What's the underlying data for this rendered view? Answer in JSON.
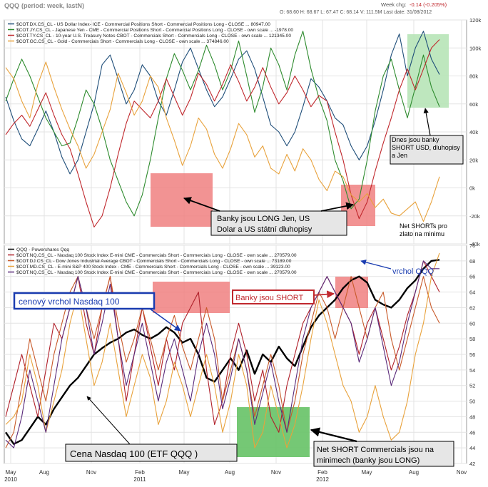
{
  "header": {
    "title": "QQQ",
    "period": "(period: week, lastN)",
    "ohlc": "O: 68.60   H: 68.67   L: 67.47   C: 68.14   V: 111.5M   Last date: 31/08/2012",
    "week_chg_label": "Week chg:",
    "week_chg_value": "-0.14 (-0.205%)"
  },
  "colors": {
    "usd": "#1f4e79",
    "jpy": "#2e8b2e",
    "tnote": "#c0282d",
    "gold": "#e8a23c",
    "qqq": "#000000",
    "nq": "#b0202a",
    "dj": "#c85a2a",
    "md": "#e8a23c",
    "nq2": "#5a2a7a",
    "red_box": "#f08080",
    "green_box": "#66c266",
    "light_green_box": "#b7e4b7"
  },
  "chart_data": [
    {
      "type": "line",
      "panel": "top",
      "ylim": [
        -40000,
        120000
      ],
      "yticks": [
        "120k",
        "100k",
        "80k",
        "60k",
        "40k",
        "20k",
        "0k",
        "-20k",
        "-40k"
      ],
      "legend": [
        "$COT.DX.CS_CL - US Dollar Index- ICE - Commercial Positions Short - Commercial Positions Long - CLOSE ... 80947.00",
        "$COT.JY.CS_CL - Japanese Yen - CME  - Commercial Positions Short - Commercial Positions Long - CLOSE - own scale ... -1978.00",
        "$COT.TY.CS_CL - 10-year U.S. Treasury Notes CBOT - Commercials Short - Commercials Long - CLOSE - own scale ... 121345.00",
        "$COT.GC.CS_CL - Gold - Commercials Short - Commercials Long - CLOSE - own scale ... 374846.00"
      ],
      "series": [
        {
          "name": "$COT.DX.CS_CL",
          "color": "#1f4e79",
          "values": [
            65000,
            48000,
            35000,
            30000,
            42000,
            55000,
            40000,
            22000,
            10000,
            20000,
            40000,
            60000,
            88000,
            95000,
            78000,
            60000,
            70000,
            88000,
            80000,
            62000,
            52000,
            70000,
            90000,
            100000,
            85000,
            70000,
            58000,
            65000,
            78000,
            92000,
            98000,
            85000,
            65000,
            45000,
            40000,
            30000,
            40000,
            58000,
            78000,
            72000,
            62000,
            50000,
            45000,
            30000,
            20000,
            30000,
            48000,
            70000,
            95000,
            110000,
            80000,
            100000,
            112000,
            92000,
            81000
          ]
        },
        {
          "name": "$COT.JY.CS_CL",
          "color": "#2e8b2e",
          "values": [
            62000,
            78000,
            92000,
            80000,
            65000,
            50000,
            40000,
            30000,
            32000,
            50000,
            70000,
            60000,
            42000,
            20000,
            5000,
            -10000,
            -20000,
            -5000,
            20000,
            50000,
            78000,
            96000,
            84000,
            70000,
            84000,
            102000,
            88000,
            70000,
            84000,
            105000,
            80000,
            54000,
            72000,
            100000,
            88000,
            70000,
            95000,
            112000,
            85000,
            64000,
            48000,
            20000,
            5000,
            -15000,
            -8000,
            20000,
            55000,
            80000,
            92000,
            70000,
            50000,
            72000,
            95000,
            72000,
            58000
          ]
        },
        {
          "name": "$COT.TY.CS_CL",
          "color": "#c0282d",
          "values": [
            38000,
            46000,
            52000,
            44000,
            56000,
            68000,
            52000,
            38000,
            28000,
            10000,
            -10000,
            -28000,
            -20000,
            0,
            24000,
            46000,
            62000,
            56000,
            50000,
            62000,
            78000,
            65000,
            52000,
            64000,
            82000,
            74000,
            62000,
            74000,
            88000,
            76000,
            62000,
            72000,
            86000,
            72000,
            60000,
            68000,
            80000,
            70000,
            58000,
            66000,
            62000,
            40000,
            20000,
            -5000,
            -22000,
            -10000,
            12000,
            32000,
            50000,
            70000,
            85000,
            70000,
            85000,
            100000,
            106000
          ]
        },
        {
          "name": "$COT.GC.CS_CL",
          "color": "#e8a23c",
          "values": [
            86000,
            78000,
            62000,
            50000,
            74000,
            90000,
            72000,
            56000,
            42000,
            30000,
            14000,
            24000,
            40000,
            56000,
            82000,
            68000,
            52000,
            62000,
            80000,
            72000,
            50000,
            34000,
            16000,
            30000,
            50000,
            42000,
            24000,
            14000,
            28000,
            46000,
            38000,
            22000,
            30000,
            14000,
            10000,
            24000,
            12000,
            28000,
            20000,
            6000,
            -2000,
            12000,
            8000,
            -5000,
            -10000,
            -4000,
            -14000,
            -8000,
            -18000,
            -20000,
            -15000,
            -10000,
            -24000,
            -10000,
            8000
          ]
        }
      ],
      "x_ticks": [
        "May\n2010",
        "Aug",
        "Nov",
        "Feb\n2011",
        "May",
        "Aug",
        "Nov",
        "Feb\n2012",
        "May",
        "Aug",
        "Nov"
      ]
    },
    {
      "type": "line",
      "panel": "bottom",
      "ylim": [
        42,
        70
      ],
      "yticks": [
        "70",
        "68",
        "66",
        "64",
        "62",
        "60",
        "58",
        "56",
        "54",
        "52",
        "50",
        "48",
        "46",
        "44",
        "42"
      ],
      "legend": [
        "QQQ - Powershares Qqq",
        "$COT.NQ.CS_CL - Nasdaq 100 Stock Index E-mini CME - Commercials Short - Commercials Long - CLOSE - own scale ... 270579.00",
        "$COT.DJ.CS_CL - Dow Jones Industrial Average CBOT - Commercials Short - Commercials Long - CLOSE - own scale ... 73189.00",
        "$COT.MD.CS_CL - E-mini S&P 400 Stock Index - CME - Commercials Short - Commercials Long - CLOSE - own scale ... 39123.00",
        "$COT.NQ.CS_CL - Nasdaq 100 Stock Index E-mini CME - Commercials Short - Commercials Long - CLOSE - own scale ... 270579.00"
      ],
      "series": [
        {
          "name": "QQQ - Powershares Qqq",
          "color": "#000000",
          "values": [
            46,
            44.5,
            45,
            46.5,
            48,
            47,
            49,
            50.5,
            52,
            53,
            54.5,
            56,
            56.8,
            57.5,
            58,
            58.8,
            59.2,
            58.5,
            58,
            58.6,
            59.5,
            58.8,
            57.5,
            58,
            56,
            53,
            52.5,
            54,
            55.5,
            54,
            56.5,
            53.5,
            56,
            55,
            57,
            55.5,
            54.5,
            57,
            59.5,
            61,
            62,
            63,
            64.5,
            65.5,
            66,
            65.2,
            63,
            62.4,
            62,
            63,
            64.5,
            65.5,
            67,
            68,
            68.14
          ]
        },
        {
          "name": "$COT.NQ.CS_CL",
          "color": "#b0202a",
          "values": [
            48,
            52,
            56,
            52,
            48,
            54,
            60,
            58,
            62,
            66,
            60,
            56,
            62,
            66,
            58,
            50,
            56,
            62,
            57,
            52,
            58,
            54,
            60,
            62,
            64,
            54,
            47,
            50,
            56,
            60,
            56,
            50,
            54,
            48,
            46,
            52,
            56,
            60,
            62,
            64,
            66,
            64,
            62,
            60,
            56,
            60,
            62,
            58,
            54,
            57,
            61,
            64,
            68,
            66,
            64
          ]
        },
        {
          "name": "$COT.DJ.CS_CL",
          "color": "#c85a2a",
          "values": [
            44,
            46,
            52,
            58,
            54,
            50,
            56,
            60,
            64,
            66,
            62,
            58,
            62,
            66,
            60,
            55,
            58,
            62,
            58,
            54,
            58,
            61,
            57,
            54,
            58,
            62,
            58,
            50,
            54,
            58,
            54,
            48,
            52,
            56,
            52,
            46,
            50,
            56,
            60,
            64,
            62,
            58,
            62,
            66,
            62,
            58,
            62,
            64,
            58,
            54,
            58,
            62,
            66,
            62,
            60
          ]
        },
        {
          "name": "$COT.MD.CS_CL",
          "color": "#e8a23c",
          "values": [
            47,
            48,
            50,
            56,
            52,
            46,
            50,
            54,
            60,
            64,
            58,
            52,
            55,
            60,
            54,
            48,
            52,
            56,
            53,
            47,
            50,
            55,
            52,
            48,
            52,
            56,
            52,
            46,
            50,
            56,
            52,
            44,
            46,
            52,
            48,
            44,
            47,
            52,
            58,
            63,
            60,
            56,
            52,
            50,
            46,
            48,
            52,
            48,
            45,
            46,
            50,
            56,
            60,
            66,
            69
          ]
        },
        {
          "name": "$COT.NQ.CS_CL",
          "color": "#5a2a7a",
          "values": [
            45,
            44,
            48,
            54,
            50,
            46,
            52,
            58,
            62,
            66,
            62,
            56,
            60,
            65,
            58,
            52,
            56,
            60,
            55,
            50,
            55,
            58,
            54,
            50,
            56,
            60,
            56,
            49,
            53,
            58,
            54,
            47,
            51,
            55,
            50,
            46,
            52,
            58,
            62,
            64,
            66,
            64,
            62,
            60,
            55,
            58,
            62,
            57,
            52,
            55,
            60,
            64,
            68,
            67,
            67
          ]
        }
      ],
      "x_ticks": [
        "May\n2010",
        "Aug",
        "Nov",
        "Feb\n2011",
        "May",
        "Aug",
        "Nov",
        "Feb\n2012",
        "May",
        "Aug",
        "Nov"
      ]
    }
  ],
  "annotations": {
    "dnes": "Dnes jsou banky SHORT USD, dluhopisy a Jen",
    "banky_long_1": "Banky jsou LONG Jen, US",
    "banky_long_2": "Dolar a US státní dluhopisy",
    "net_shorts_1": "Net SHORTs pro",
    "net_shorts_2": "zlato na minimu",
    "cenovy_vrchol": "cenový vrchol Nasdaq 100",
    "banky_short": "Banky jsou SHORT",
    "vrchol_qqq": "vrchol QQQ",
    "cena_nasdaq": "Cena Nasdaq 100 (ETF QQQ )",
    "net_short_comm_1": "Net SHORT Commercials jsou na",
    "net_short_comm_2": "minimech  (banky jsou LONG)"
  }
}
